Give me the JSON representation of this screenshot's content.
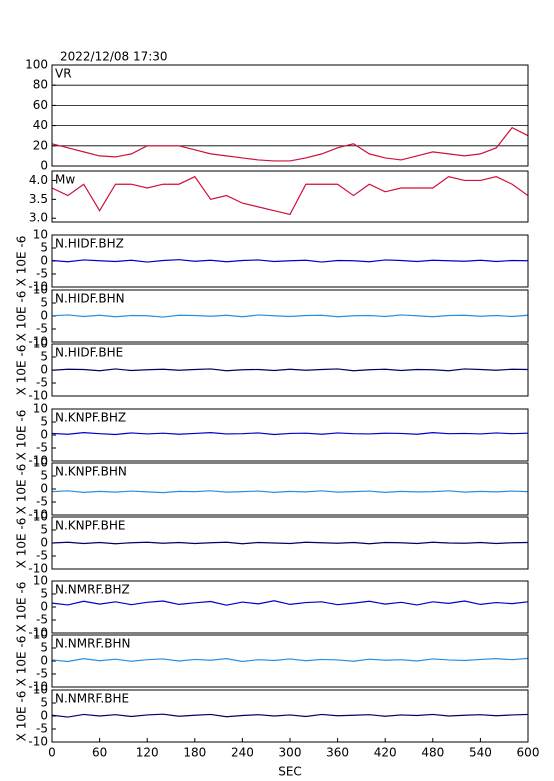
{
  "chart_data": [
    {
      "type": "line",
      "title": "2022/12/08 17:30",
      "label": "VR",
      "x": [
        0,
        20,
        40,
        60,
        80,
        100,
        120,
        140,
        160,
        180,
        200,
        220,
        240,
        260,
        280,
        300,
        320,
        340,
        360,
        380,
        400,
        420,
        440,
        460,
        480,
        500,
        520,
        540,
        560,
        580,
        600
      ],
      "series": [
        {
          "color": "#d0103a",
          "values": [
            22,
            18,
            14,
            10,
            9,
            12,
            20,
            20,
            20,
            16,
            12,
            10,
            8,
            6,
            5,
            5,
            8,
            12,
            18,
            22,
            12,
            8,
            6,
            10,
            14,
            12,
            10,
            12,
            18,
            38,
            30
          ]
        }
      ],
      "xlim": [
        0,
        600
      ],
      "ylim": [
        0,
        100
      ],
      "yticks": [
        0,
        20,
        40,
        60,
        80,
        100
      ],
      "grid": true
    },
    {
      "type": "line",
      "label": "Mw",
      "x": [
        0,
        20,
        40,
        60,
        80,
        100,
        120,
        140,
        160,
        180,
        200,
        220,
        240,
        260,
        280,
        300,
        320,
        340,
        360,
        380,
        400,
        420,
        440,
        460,
        480,
        500,
        520,
        540,
        560,
        580,
        600
      ],
      "series": [
        {
          "color": "#d0103a",
          "values": [
            3.8,
            3.6,
            3.9,
            3.2,
            3.9,
            3.9,
            3.8,
            3.9,
            3.9,
            4.1,
            3.5,
            3.6,
            3.4,
            3.3,
            3.2,
            3.1,
            3.9,
            3.9,
            3.9,
            3.6,
            3.9,
            3.7,
            3.8,
            3.8,
            3.8,
            4.1,
            4.0,
            4.0,
            4.1,
            3.9,
            3.6
          ]
        }
      ],
      "xlim": [
        0,
        600
      ],
      "ylim": [
        2.9,
        4.25
      ],
      "yticks": [
        {
          "value": 3,
          "label": "3.0"
        },
        3.5,
        {
          "value": 4,
          "label": "4.0"
        }
      ],
      "grid": false
    },
    {
      "type": "line",
      "label": "N.HIDF.BHZ",
      "ylabel": "X 10E -6",
      "x": [
        0,
        20,
        40,
        60,
        80,
        100,
        120,
        140,
        160,
        180,
        200,
        220,
        240,
        260,
        280,
        300,
        320,
        340,
        360,
        380,
        400,
        420,
        440,
        460,
        480,
        500,
        520,
        540,
        560,
        580,
        600
      ],
      "series": [
        {
          "color": "#0000cc",
          "values": [
            0.2,
            -0.3,
            0.4,
            0.1,
            -0.2,
            0.3,
            -0.4,
            0.2,
            0.5,
            -0.1,
            0.3,
            -0.3,
            0.2,
            0.4,
            -0.2,
            0.1,
            0.3,
            -0.4,
            0.2,
            0.1,
            -0.3,
            0.4,
            0.2,
            -0.2,
            0.3,
            0.1,
            -0.1,
            0.3,
            -0.2,
            0.2,
            0.1
          ]
        }
      ],
      "xlim": [
        0,
        600
      ],
      "ylim": [
        -10,
        10
      ],
      "yticks": [
        -10,
        -5,
        0,
        5,
        10
      ],
      "grid": false
    },
    {
      "type": "line",
      "label": "N.HIDF.BHN",
      "ylabel": "X 10E -6",
      "x": [
        0,
        20,
        40,
        60,
        80,
        100,
        120,
        140,
        160,
        180,
        200,
        220,
        240,
        260,
        280,
        300,
        320,
        340,
        360,
        380,
        400,
        420,
        440,
        460,
        480,
        500,
        520,
        540,
        560,
        580,
        600
      ],
      "series": [
        {
          "color": "#2a8fe0",
          "values": [
            0.1,
            0.4,
            -0.2,
            0.3,
            -0.3,
            0.2,
            0.1,
            -0.4,
            0.3,
            0.2,
            -0.1,
            0.3,
            -0.3,
            0.4,
            0.1,
            -0.2,
            0.2,
            0.3,
            -0.3,
            0.1,
            0.2,
            -0.2,
            0.4,
            0.1,
            -0.3,
            0.2,
            0.3,
            -0.1,
            0.2,
            -0.2,
            0.3
          ]
        }
      ],
      "xlim": [
        0,
        600
      ],
      "ylim": [
        -10,
        10
      ],
      "yticks": [
        -10,
        -5,
        0,
        5,
        10
      ],
      "grid": false
    },
    {
      "type": "line",
      "label": "N.HIDF.BHE",
      "ylabel": "X 10E -6",
      "x": [
        0,
        20,
        40,
        60,
        80,
        100,
        120,
        140,
        160,
        180,
        200,
        220,
        240,
        260,
        280,
        300,
        320,
        340,
        360,
        380,
        400,
        420,
        440,
        460,
        480,
        500,
        520,
        540,
        560,
        580,
        600
      ],
      "series": [
        {
          "color": "#000066",
          "values": [
            -0.1,
            0.3,
            0.2,
            -0.3,
            0.4,
            -0.2,
            0.1,
            0.3,
            -0.1,
            0.2,
            0.4,
            -0.3,
            0.1,
            0.2,
            -0.2,
            0.3,
            -0.1,
            0.2,
            0.4,
            -0.3,
            0.1,
            0.3,
            -0.2,
            0.2,
            0.1,
            -0.3,
            0.4,
            0.2,
            -0.1,
            0.3,
            0.2
          ]
        }
      ],
      "xlim": [
        0,
        600
      ],
      "ylim": [
        -10,
        10
      ],
      "yticks": [
        -10,
        -5,
        0,
        5,
        10
      ],
      "grid": false
    },
    {
      "type": "line",
      "label": "N.KNPF.BHZ",
      "ylabel": "X 10E -6",
      "x": [
        0,
        20,
        40,
        60,
        80,
        100,
        120,
        140,
        160,
        180,
        200,
        220,
        240,
        260,
        280,
        300,
        320,
        340,
        360,
        380,
        400,
        420,
        440,
        460,
        480,
        500,
        520,
        540,
        560,
        580,
        600
      ],
      "series": [
        {
          "color": "#0000cc",
          "values": [
            0.6,
            0.3,
            0.9,
            0.5,
            0.2,
            0.8,
            0.4,
            0.7,
            0.3,
            0.6,
            0.9,
            0.4,
            0.5,
            0.8,
            0.2,
            0.6,
            0.7,
            0.3,
            0.8,
            0.5,
            0.4,
            0.7,
            0.6,
            0.3,
            0.9,
            0.5,
            0.6,
            0.4,
            0.8,
            0.5,
            0.7
          ]
        }
      ],
      "xlim": [
        0,
        600
      ],
      "ylim": [
        -10,
        10
      ],
      "yticks": [
        -10,
        -5,
        0,
        5,
        10
      ],
      "grid": false
    },
    {
      "type": "line",
      "label": "N.KNPF.BHN",
      "ylabel": "X 10E -6",
      "x": [
        0,
        20,
        40,
        60,
        80,
        100,
        120,
        140,
        160,
        180,
        200,
        220,
        240,
        260,
        280,
        300,
        320,
        340,
        360,
        380,
        400,
        420,
        440,
        460,
        480,
        500,
        520,
        540,
        560,
        580,
        600
      ],
      "series": [
        {
          "color": "#2a8fe0",
          "values": [
            -1.0,
            -0.7,
            -1.3,
            -0.9,
            -1.2,
            -0.8,
            -1.1,
            -1.4,
            -0.9,
            -1.0,
            -0.7,
            -1.2,
            -1.0,
            -0.8,
            -1.3,
            -0.9,
            -1.1,
            -0.7,
            -1.2,
            -1.0,
            -0.8,
            -1.3,
            -0.9,
            -1.1,
            -1.0,
            -0.7,
            -1.2,
            -0.9,
            -1.1,
            -0.8,
            -1.0
          ]
        }
      ],
      "xlim": [
        0,
        600
      ],
      "ylim": [
        -10,
        10
      ],
      "yticks": [
        -10,
        -5,
        0,
        5,
        10
      ],
      "grid": false
    },
    {
      "type": "line",
      "label": "N.KNPF.BHE",
      "ylabel": "X 10E -6",
      "x": [
        0,
        20,
        40,
        60,
        80,
        100,
        120,
        140,
        160,
        180,
        200,
        220,
        240,
        260,
        280,
        300,
        320,
        340,
        360,
        380,
        400,
        420,
        440,
        460,
        480,
        500,
        520,
        540,
        560,
        580,
        600
      ],
      "series": [
        {
          "color": "#000066",
          "values": [
            0.0,
            0.3,
            -0.2,
            0.2,
            -0.3,
            0.1,
            0.3,
            -0.1,
            0.2,
            -0.2,
            0.1,
            0.3,
            -0.3,
            0.2,
            0.0,
            -0.2,
            0.3,
            0.1,
            -0.1,
            0.2,
            -0.3,
            0.2,
            0.1,
            -0.2,
            0.3,
            0.0,
            -0.1,
            0.2,
            -0.2,
            0.1,
            0.2
          ]
        }
      ],
      "xlim": [
        0,
        600
      ],
      "ylim": [
        -10,
        10
      ],
      "yticks": [
        -10,
        -5,
        0,
        5,
        10
      ],
      "grid": false
    },
    {
      "type": "line",
      "label": "N.NMRF.BHZ",
      "ylabel": "X 10E -6",
      "x": [
        0,
        20,
        40,
        60,
        80,
        100,
        120,
        140,
        160,
        180,
        200,
        220,
        240,
        260,
        280,
        300,
        320,
        340,
        360,
        380,
        400,
        420,
        440,
        460,
        480,
        500,
        520,
        540,
        560,
        580,
        600
      ],
      "series": [
        {
          "color": "#0000cc",
          "values": [
            1.5,
            0.8,
            2.2,
            1.1,
            2.0,
            0.9,
            1.8,
            2.3,
            1.0,
            1.6,
            2.1,
            0.7,
            1.9,
            1.2,
            2.4,
            1.0,
            1.7,
            2.0,
            0.9,
            1.5,
            2.2,
            1.1,
            1.8,
            0.8,
            2.0,
            1.4,
            2.3,
            1.0,
            1.7,
            1.3,
            2.0
          ]
        }
      ],
      "xlim": [
        0,
        600
      ],
      "ylim": [
        -10,
        10
      ],
      "yticks": [
        -10,
        -5,
        0,
        5,
        10
      ],
      "grid": false
    },
    {
      "type": "line",
      "label": "N.NMRF.BHN",
      "ylabel": "X 10E -6",
      "x": [
        0,
        20,
        40,
        60,
        80,
        100,
        120,
        140,
        160,
        180,
        200,
        220,
        240,
        260,
        280,
        300,
        320,
        340,
        360,
        380,
        400,
        420,
        440,
        460,
        480,
        500,
        520,
        540,
        560,
        580,
        600
      ],
      "series": [
        {
          "color": "#2a8fe0",
          "values": [
            0.4,
            -0.2,
            0.9,
            0.1,
            0.7,
            -0.1,
            0.5,
            0.8,
            0.0,
            0.6,
            0.3,
            0.9,
            -0.2,
            0.5,
            0.2,
            0.8,
            0.1,
            0.6,
            0.4,
            -0.1,
            0.7,
            0.3,
            0.5,
            0.0,
            0.8,
            0.4,
            0.2,
            0.6,
            0.9,
            0.5,
            1.0
          ]
        }
      ],
      "xlim": [
        0,
        600
      ],
      "ylim": [
        -10,
        10
      ],
      "yticks": [
        -10,
        -5,
        0,
        5,
        10
      ],
      "grid": false
    },
    {
      "type": "line",
      "label": "N.NMRF.BHE",
      "ylabel": "X 10E -6",
      "xlabel": "SEC",
      "x": [
        0,
        20,
        40,
        60,
        80,
        100,
        120,
        140,
        160,
        180,
        200,
        220,
        240,
        260,
        280,
        300,
        320,
        340,
        360,
        380,
        400,
        420,
        440,
        460,
        480,
        500,
        520,
        540,
        560,
        580,
        600
      ],
      "series": [
        {
          "color": "#000066",
          "values": [
            0.3,
            -0.4,
            0.6,
            0.0,
            0.5,
            -0.2,
            0.4,
            0.7,
            -0.1,
            0.3,
            0.6,
            -0.3,
            0.2,
            0.5,
            0.0,
            0.4,
            -0.2,
            0.6,
            0.1,
            0.3,
            0.5,
            -0.1,
            0.4,
            0.2,
            0.6,
            0.0,
            0.3,
            0.5,
            0.1,
            0.4,
            0.6
          ]
        }
      ],
      "xlim": [
        0,
        600
      ],
      "ylim": [
        -10,
        10
      ],
      "xticks": [
        0,
        60,
        120,
        180,
        240,
        300,
        360,
        420,
        480,
        540,
        600
      ],
      "yticks": [
        -10,
        -5,
        0,
        5,
        10
      ],
      "grid": false
    }
  ]
}
